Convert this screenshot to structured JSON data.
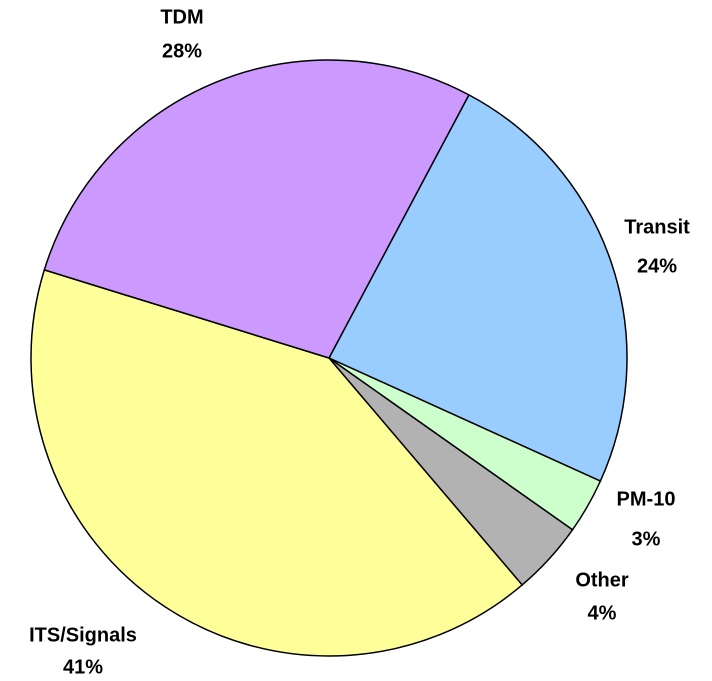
{
  "chart_data": {
    "type": "pie",
    "categories": [
      "Transit",
      "PM-10",
      "Other",
      "ITS/Signals",
      "TDM"
    ],
    "values": [
      24,
      3,
      4,
      41,
      28
    ],
    "value_labels": [
      "24%",
      "3%",
      "4%",
      "41%",
      "28%"
    ],
    "colors": [
      "#99ccff",
      "#ccffcc",
      "#b2b2b2",
      "#ffff99",
      "#cc99ff"
    ]
  }
}
